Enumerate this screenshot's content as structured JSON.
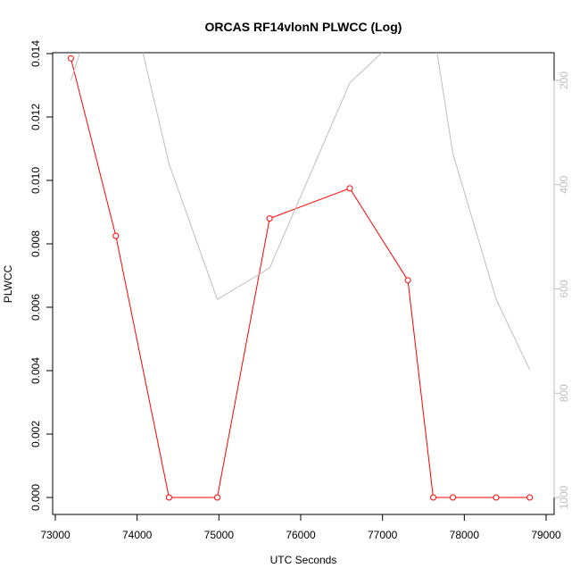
{
  "chart_data": {
    "type": "line",
    "title": "ORCAS RF14vlonN PLWCC (Log)",
    "xlabel": "UTC Seconds",
    "ylabel": "PLWCC",
    "xlim": [
      73000,
      79000
    ],
    "ylim": [
      0,
      0.014
    ],
    "y2lim": [
      1000,
      200
    ],
    "y2_reversed": true,
    "x_ticks": [
      73000,
      74000,
      75000,
      76000,
      77000,
      78000,
      79000
    ],
    "y_ticks": [
      0.0,
      0.002,
      0.004,
      0.006,
      0.008,
      0.01,
      0.012,
      0.014
    ],
    "y_tick_labels": [
      "0.000",
      "0.002",
      "0.004",
      "0.006",
      "0.008",
      "0.010",
      "0.012",
      "0.014"
    ],
    "y2_ticks": [
      200,
      400,
      600,
      800,
      1000
    ],
    "grid": false,
    "colors": {
      "primary": "#ff0000",
      "secondary": "#bebebe",
      "axis": "#000000",
      "secondary_axis": "#bebebe"
    },
    "series": [
      {
        "axis": "left",
        "style": "line+points",
        "x": [
          73190,
          73740,
          74390,
          74980,
          75620,
          76600,
          77310,
          77620,
          77860,
          78390,
          78800
        ],
        "y": [
          0.01385,
          0.00825,
          0.0,
          0.0,
          0.0088,
          0.00975,
          0.00685,
          0.0,
          0.0,
          0.0,
          0.0
        ]
      },
      {
        "axis": "right",
        "style": "line",
        "x": [
          73190,
          73400,
          73600,
          74000,
          74390,
          74980,
          75620,
          76600,
          77310,
          77620,
          77860,
          78390,
          78800
        ],
        "y": [
          200,
          100,
          100,
          100,
          360,
          620,
          560,
          205,
          100,
          100,
          340,
          620,
          755
        ]
      }
    ]
  }
}
